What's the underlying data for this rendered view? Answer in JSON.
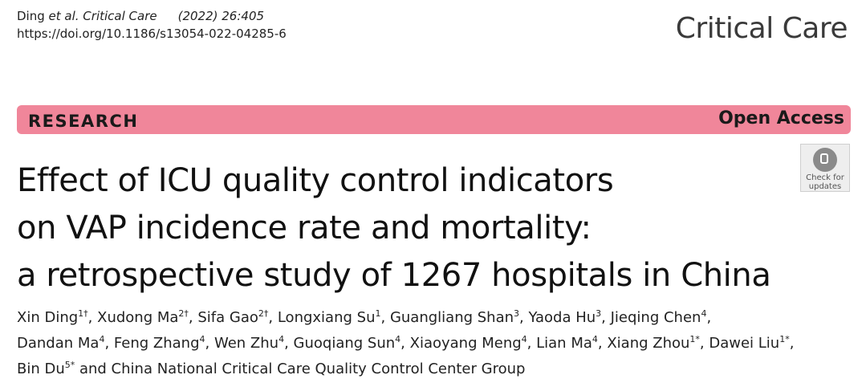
{
  "citation": {
    "author": "Ding",
    "journal_italic": "et al. Critical Care",
    "volume": "(2022) 26:405",
    "doi": "https://doi.org/10.1186/s13054-022-04285-6"
  },
  "brand": "Critical Care",
  "banner": {
    "article_type": "RESEARCH",
    "access": "Open Access",
    "color": "#f0869a"
  },
  "badge": {
    "icon": "check-for-updates-icon",
    "line1": "Check for",
    "line2": "updates"
  },
  "title": {
    "line1": "Effect of ICU quality control indicators",
    "line2": "on VAP incidence rate and mortality:",
    "line3": "a retrospective study of 1267 hospitals in China"
  },
  "authors": [
    {
      "name": "Xin Ding",
      "sup": "1†",
      "sep": ", "
    },
    {
      "name": "Xudong Ma",
      "sup": "2†",
      "sep": ", "
    },
    {
      "name": "Sifa Gao",
      "sup": "2†",
      "sep": ", "
    },
    {
      "name": "Longxiang Su",
      "sup": "1",
      "sep": ", "
    },
    {
      "name": "Guangliang Shan",
      "sup": "3",
      "sep": ", "
    },
    {
      "name": "Yaoda Hu",
      "sup": "3",
      "sep": ", "
    },
    {
      "name": "Jieqing Chen",
      "sup": "4",
      "sep": ","
    },
    {
      "name": "Dandan Ma",
      "sup": "4",
      "sep": ", "
    },
    {
      "name": "Feng Zhang",
      "sup": "4",
      "sep": ", "
    },
    {
      "name": "Wen Zhu",
      "sup": "4",
      "sep": ", "
    },
    {
      "name": "Guoqiang Sun",
      "sup": "4",
      "sep": ", "
    },
    {
      "name": "Xiaoyang Meng",
      "sup": "4",
      "sep": ", "
    },
    {
      "name": "Lian Ma",
      "sup": "4",
      "sep": ", "
    },
    {
      "name": "Xiang Zhou",
      "sup": "1*",
      "sep": ", "
    },
    {
      "name": "Dawei Liu",
      "sup": "1*",
      "sep": ","
    },
    {
      "name": "Bin Du",
      "sup": "5*",
      "sep": ""
    }
  ],
  "authors_tail": " and China National Critical Care Quality Control Center Group"
}
